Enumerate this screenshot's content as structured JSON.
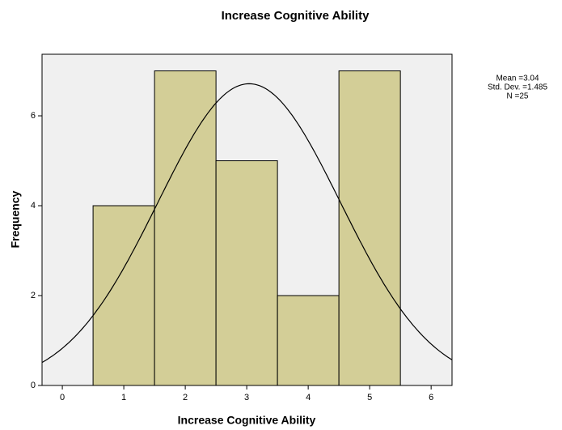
{
  "chart_data": {
    "type": "histogram",
    "title": "Increase Cognitive Ability",
    "bins": [
      0.5,
      1.5,
      2.5,
      3.5,
      4.5,
      5.5
    ],
    "counts": [
      4,
      7,
      5,
      2,
      7
    ],
    "color": "#d3ce97",
    "background": "#f0f0f0",
    "xlabel": "Increase Cognitive Ability",
    "ylabel": "Frequency",
    "xlim": [
      -0.33,
      6.34
    ],
    "xticks": [
      0,
      1,
      2,
      3,
      4,
      5,
      6
    ],
    "ylim": [
      0,
      7.37
    ],
    "yticks": [
      0,
      2,
      4,
      6
    ],
    "annotations": [
      "Mean =3.04",
      "Std. Dev. =1.485",
      "N =25"
    ]
  }
}
